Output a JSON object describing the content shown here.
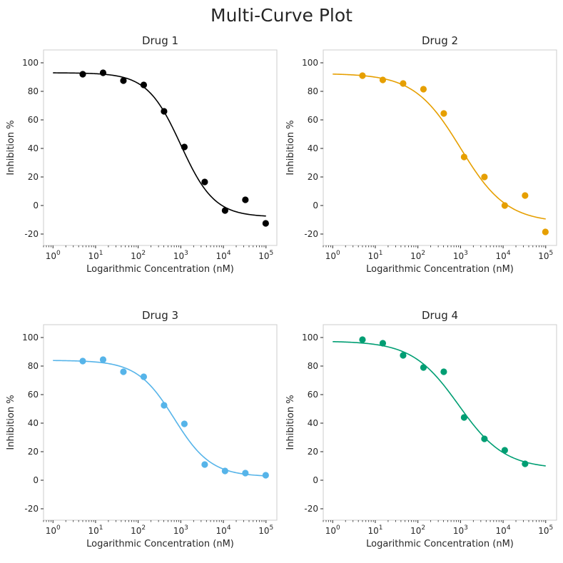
{
  "figure": {
    "title": "Multi-Curve Plot"
  },
  "chart_data": [
    {
      "type": "scatter",
      "title": "Drug 1",
      "xlabel": "Logarithmic Concentration (nM)",
      "ylabel": "Inhibition %",
      "xscale": "log",
      "xlim": [
        0.6,
        180000
      ],
      "ylim": [
        -28,
        109
      ],
      "xticks": [
        1,
        10,
        100,
        1000,
        10000,
        100000
      ],
      "yticks": [
        -20,
        0,
        20,
        40,
        60,
        80,
        100
      ],
      "grid": false,
      "color": "#000000",
      "points": {
        "x": [
          5,
          15,
          45,
          135,
          405,
          1215,
          3645,
          10935,
          32805,
          98415
        ],
        "y": [
          92.0,
          93.0,
          87.5,
          84.5,
          66.0,
          41.0,
          16.5,
          -3.5,
          4.0,
          -12.5
        ]
      },
      "fit": {
        "top": 93.0,
        "bottom": -8.0,
        "ec50": 1000,
        "hill": 1.1
      }
    },
    {
      "type": "scatter",
      "title": "Drug 2",
      "xlabel": "Logarithmic Concentration (nM)",
      "ylabel": "Inhibition %",
      "xscale": "log",
      "xlim": [
        0.6,
        180000
      ],
      "ylim": [
        -28,
        109
      ],
      "xticks": [
        1,
        10,
        100,
        1000,
        10000,
        100000
      ],
      "yticks": [
        -20,
        0,
        20,
        40,
        60,
        80,
        100
      ],
      "grid": false,
      "color": "#E69F00",
      "points": {
        "x": [
          5,
          15,
          45,
          135,
          405,
          1215,
          3645,
          10935,
          32805,
          98415
        ],
        "y": [
          91.0,
          88.0,
          85.5,
          81.5,
          64.5,
          34.0,
          20.0,
          0.0,
          7.0,
          -18.5
        ]
      },
      "fit": {
        "top": 92.5,
        "bottom": -12.0,
        "ec50": 1000,
        "hill": 0.8
      }
    },
    {
      "type": "scatter",
      "title": "Drug 3",
      "xlabel": "Logarithmic Concentration (nM)",
      "ylabel": "Inhibition %",
      "xscale": "log",
      "xlim": [
        0.6,
        180000
      ],
      "ylim": [
        -28,
        109
      ],
      "xticks": [
        1,
        10,
        100,
        1000,
        10000,
        100000
      ],
      "yticks": [
        -20,
        0,
        20,
        40,
        60,
        80,
        100
      ],
      "grid": false,
      "color": "#56B4E9",
      "points": {
        "x": [
          5,
          15,
          45,
          135,
          405,
          1215,
          3645,
          10935,
          32805,
          98415
        ],
        "y": [
          83.5,
          84.5,
          76.0,
          72.5,
          52.5,
          39.5,
          11.0,
          6.5,
          5.0,
          3.5
        ]
      },
      "fit": {
        "top": 84.0,
        "bottom": 2.5,
        "ec50": 700,
        "hill": 1.0
      }
    },
    {
      "type": "scatter",
      "title": "Drug 4",
      "xlabel": "Logarithmic Concentration (nM)",
      "ylabel": "Inhibition %",
      "xscale": "log",
      "xlim": [
        0.6,
        180000
      ],
      "ylim": [
        -28,
        109
      ],
      "xticks": [
        1,
        10,
        100,
        1000,
        10000,
        100000
      ],
      "yticks": [
        -20,
        0,
        20,
        40,
        60,
        80,
        100
      ],
      "grid": false,
      "color": "#009E73",
      "points": {
        "x": [
          5,
          15,
          45,
          135,
          405,
          1215,
          3645,
          10935,
          32805
        ],
        "y": [
          98.5,
          96.0,
          87.5,
          79.0,
          76.0,
          44.0,
          29.0,
          21.0,
          11.5
        ]
      },
      "fit": {
        "top": 97.5,
        "bottom": 8.0,
        "ec50": 900,
        "hill": 0.8
      }
    }
  ]
}
